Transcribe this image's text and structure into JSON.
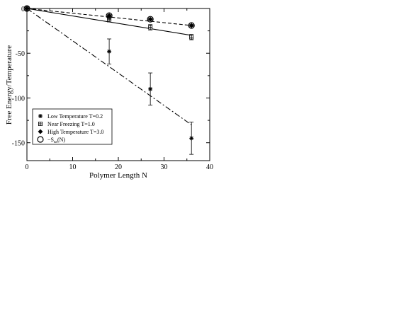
{
  "chart_data": {
    "type": "scatter",
    "title": "",
    "xlabel": "Polymer Length N",
    "ylabel": "Free Energy/Temperature",
    "xlim": [
      0,
      40
    ],
    "ylim": [
      -170,
      0
    ],
    "xticks": [
      0,
      10,
      20,
      30,
      40
    ],
    "yticks": [
      0,
      -50,
      -100,
      -150
    ],
    "xtick_labels": [
      "0",
      "10",
      "20",
      "30",
      "40"
    ],
    "ytick_labels": [
      "0",
      "-50",
      "-100",
      "-150"
    ],
    "grid": false,
    "legend_position": "bottom-left",
    "series": [
      {
        "name": "Low Temperature T=0.2",
        "marker": "star",
        "x": [
          0,
          18,
          27,
          36
        ],
        "y": [
          0,
          -48,
          -90,
          -145
        ],
        "yerr": [
          0,
          14,
          18,
          18
        ]
      },
      {
        "name": "Near Freezing T=1.0",
        "marker": "square-cross",
        "x": [
          0,
          18,
          27,
          36
        ],
        "y": [
          0,
          -12,
          -21,
          -32
        ],
        "yerr": [
          0,
          3,
          3,
          3
        ]
      },
      {
        "name": "High Temperature T=3.0",
        "marker": "diamond",
        "x": [
          0,
          18,
          27,
          36
        ],
        "y": [
          0,
          -8,
          -12,
          -19
        ],
        "yerr": [
          0,
          1,
          1,
          1
        ]
      },
      {
        "name": "−S_sa(N)",
        "marker": "circle",
        "x": [
          0,
          18,
          27,
          36
        ],
        "y": [
          0,
          -8,
          -12,
          -19
        ],
        "yerr": []
      }
    ],
    "fit_lines": [
      {
        "style": "dash-dot",
        "x": [
          0,
          36
        ],
        "y": [
          0,
          -130
        ]
      },
      {
        "style": "solid",
        "x": [
          0,
          36
        ],
        "y": [
          0,
          -30
        ]
      },
      {
        "style": "dashed",
        "x": [
          0,
          36
        ],
        "y": [
          0,
          -19
        ]
      }
    ],
    "legend": {
      "entries": [
        {
          "marker": "star",
          "text": "Low Temperature T=0.2"
        },
        {
          "marker": "square-cross",
          "text": "Near Freezing T=1.0"
        },
        {
          "marker": "diamond",
          "text": "High Temperature T=3.0"
        },
        {
          "marker": "circle",
          "text_main": "−S",
          "text_sub": "sa",
          "text_end": "(N)"
        }
      ]
    }
  }
}
